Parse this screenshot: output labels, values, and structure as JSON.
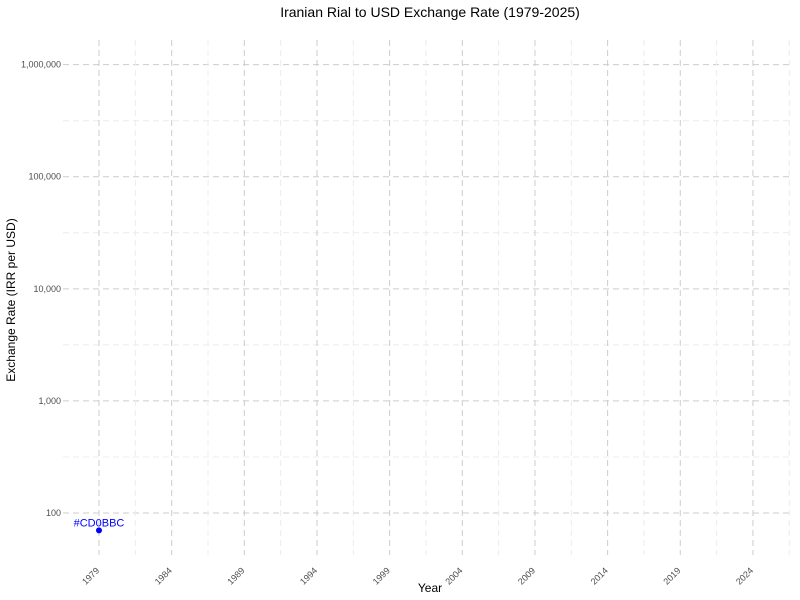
{
  "chart_data": {
    "type": "scatter",
    "title": "Iranian Rial to USD Exchange Rate (1979-2025)",
    "xlabel": "Year",
    "ylabel": "Exchange Rate (IRR per USD)",
    "x_ticks": [
      "1979",
      "1984",
      "1989",
      "1994",
      "1999",
      "2004",
      "2009",
      "2014",
      "2019",
      "2024"
    ],
    "y_ticks": [
      "100",
      "1,000",
      "10,000",
      "100,000",
      "1,000,000"
    ],
    "y_scale": "log10",
    "xlim": [
      1979,
      2025
    ],
    "ylim": [
      70,
      1000000
    ],
    "grid": true,
    "points": [
      {
        "x": 1979,
        "y": 70,
        "label": "#CD0BBC"
      }
    ],
    "point_color": "#0000ff"
  }
}
